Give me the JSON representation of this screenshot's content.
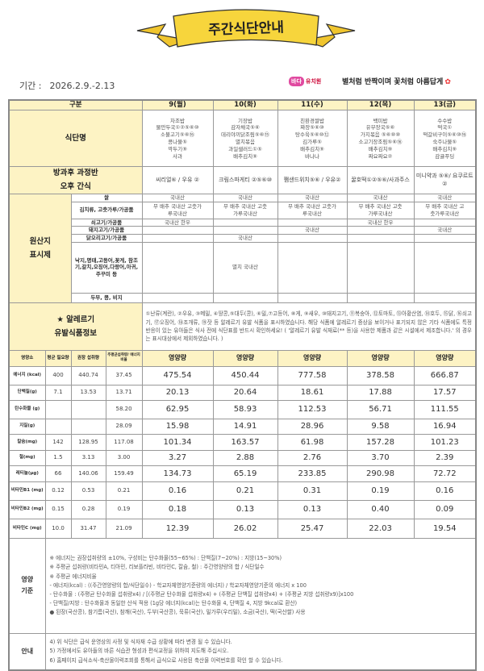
{
  "header": {
    "title": "주간식단안내",
    "period_label": "기간 :",
    "period_value": "2026.2.9.-2.13",
    "school_logo": "바다",
    "school_name": "유치원",
    "slogan": "별처럼 반짝이며 꽃처럼 아름답게",
    "flower_icon": "tulip-icon"
  },
  "table": {
    "category_header": "구분",
    "days": [
      "9(월)",
      "10(화)",
      "11(수)",
      "12(목)",
      "13(금)"
    ],
    "menu_label": "식단명",
    "menus": [
      [
        "차조밥",
        "물만두국①②⑤⑥⑩",
        "소불고기⑤⑥⑯",
        "콩나물⑤",
        "깍두기⑨",
        "사과"
      ],
      [
        "기장밥",
        "감자채국⑤⑥",
        "데리야끼닭조림⑤⑥⑮",
        "멸치볶음",
        "과일샐러드①⑤",
        "배추김치⑨"
      ],
      [
        "친환경쌀밥",
        "짜장⑤⑥⑩",
        "탕수육⑤⑥⑩⑫",
        "김가루⑤",
        "배추김치⑨",
        "바나나"
      ],
      [
        "백미밥",
        "유부장국⑤⑥",
        "가지볶음 ⑤⑥⑩⑩",
        "소고기장조림⑤⑥⑯",
        "배추김치⑨",
        "짜요짜요②"
      ],
      [
        "수수밥",
        "떡국①",
        "떡갈비구이⑤⑥⑩⑯",
        "숙주나물⑤",
        "배추김치⑨",
        "감귤푸딩"
      ]
    ],
    "snack_label_1": "방과후 과정반",
    "snack_label_2": "오후 간식",
    "snacks": [
      "씨리얼⑥ / 우유 ②",
      "크림스파게티 ②⑤⑥⑩",
      "쨈샌드위치⑤⑥ / 우유②",
      "꿀호떡①②⑤⑥/사과주스",
      "미니약과 ⑤⑥/ 요쿠르트②"
    ],
    "origin_label_1": "원산지",
    "origin_label_2": "표시제",
    "origin_rows": [
      {
        "item": "쌀",
        "values": [
          "국내산",
          "국내산",
          "국내산",
          "국내산",
          "국내산"
        ]
      },
      {
        "item": "김치류, 고춧가루/가공품",
        "values": [
          "무 배추 국내산 고춧가루국내산",
          "무 배추 국내산 고춧가루국내산",
          "무 배추 국내산 고춧가루국내산",
          "무 배추 국내산 고춧가루국내산",
          "무 배추 국내산 고춧가루국내산"
        ]
      },
      {
        "item": "쇠고기/가공품",
        "values": [
          "국내산 한우",
          "",
          "",
          "국내산 한우",
          ""
        ]
      },
      {
        "item": "돼지고기/가공품",
        "values": [
          "",
          "",
          "국내산",
          "",
          "국내산"
        ]
      },
      {
        "item": "닭오리고기/가공품",
        "values": [
          "",
          "국내산",
          "",
          "",
          ""
        ]
      },
      {
        "item": "낙지,명태,고등어,꽃게, 참조기,갈치,오징어,다랑어,아귀, 주꾸미 등",
        "values": [
          "",
          "멸치 국내산",
          "",
          "",
          ""
        ]
      },
      {
        "item": "두부, 콩, 비지",
        "values": [
          "",
          "",
          "",
          "",
          ""
        ]
      }
    ],
    "allergy_label_1": "★ 알레르기",
    "allergy_label_2": "유발식품정보",
    "allergy_text": "①난류(계란), ②우유, ③메밀, ④땅콩,⑤대두(콩), ⑥밀,⑦고등어, ⑧게, ⑨새우, ⑩돼지고기, ⑪복숭아, ⑫토마토, ⑬아황산염, ⑭호두, ⑮닭, ⑯쇠고기, ⑰오징어, ⑱조개류, ⑲잣 등 알레르기 유발 식품을 표시하였습니다. 해당 식품에 알레르기 증상을 보이거나 표기되지 않은 기타 식품에도 특정 반응이 있는 유아들은 식사 전에 식단표를 반드시 확인하세요! ( '알레르기 유발 식재료(** 등)을 사용한 제품과 같은 시설에서 제조합니다.' 의 경우는 표시대상에서 제외하였습니다. )",
    "nutrition_headers": [
      "영양소",
      "평균 필요량",
      "권장 섭취량",
      "주평균섭취량/ 에너지비율",
      "영양량"
    ],
    "nutrition_rows": [
      {
        "name": "에너지 (kcal)",
        "avg": "400",
        "rec": "440.74",
        "weekly": "37.45",
        "values": [
          "475.54",
          "450.44",
          "777.58",
          "378.58",
          "666.87"
        ]
      },
      {
        "name": "단백질(g)",
        "avg": "7.1",
        "rec": "13.53",
        "weekly": "13.71",
        "values": [
          "20.13",
          "20.64",
          "18.61",
          "17.88",
          "17.57"
        ]
      },
      {
        "name": "탄수화물 (g)",
        "avg": "",
        "rec": "",
        "weekly": "58.20",
        "values": [
          "62.95",
          "58.93",
          "112.53",
          "56.71",
          "111.55"
        ]
      },
      {
        "name": "지질(g)",
        "avg": "",
        "rec": "",
        "weekly": "28.09",
        "values": [
          "15.98",
          "14.91",
          "28.96",
          "9.58",
          "16.94"
        ]
      },
      {
        "name": "칼슘(mg)",
        "avg": "142",
        "rec": "128.95",
        "weekly": "117.08",
        "values": [
          "101.34",
          "163.57",
          "61.98",
          "157.28",
          "101.23"
        ]
      },
      {
        "name": "철(mg)",
        "avg": "1.5",
        "rec": "3.13",
        "weekly": "3.00",
        "values": [
          "3.27",
          "2.88",
          "2.76",
          "3.70",
          "2.39"
        ]
      },
      {
        "name": "레티놀(μg)",
        "avg": "66",
        "rec": "140.06",
        "weekly": "159.49",
        "values": [
          "134.73",
          "65.19",
          "233.85",
          "290.98",
          "72.72"
        ]
      },
      {
        "name": "비타민B1 (mg)",
        "avg": "0.12",
        "rec": "0.53",
        "weekly": "0.21",
        "values": [
          "0.16",
          "0.21",
          "0.31",
          "0.19",
          "0.16"
        ]
      },
      {
        "name": "비타민B2 (mg)",
        "avg": "0.15",
        "rec": "0.28",
        "weekly": "0.19",
        "values": [
          "0.18",
          "0.13",
          "0.13",
          "0.40",
          "0.09"
        ]
      },
      {
        "name": "비타민C (mg)",
        "avg": "10.0",
        "rec": "31.47",
        "weekly": "21.09",
        "values": [
          "12.39",
          "26.02",
          "25.47",
          "22.03",
          "19.54"
        ]
      }
    ],
    "guide_label_1": "영양",
    "guide_label_2": "기준",
    "guide_lines": [
      "※ 에너지는 권장섭취량의 ±10%, 구성비는 탄수화물(55~65%) : 단백질(7~20%) : 지방(15~30%)",
      "※ 주평균 섭취량(비타민A, 티아민, 리보플라빈, 비타민C, 칼슘, 철) : 주간영양량의 합 / 식단일수",
      "※ 주평균 에너지비율",
      "- 에너지(kcal) : ((주간영양량의 합/식단일수) - 학교자체영양기준량의 에너지) / 학교자체영양기준의 에너지 x 100",
      "- 탄수화물 : (주평균 탄수화물 섭취량x4) / [(주평균 탄수화물 섭취량x4) + (주평균 단백질 섭취량x4) + (주평균 지방 섭취량x9)]x100",
      "- 단백질/지방 : 탄수화물과 동일한 산식 적용 (1g당 에너지(kcal)는 탄수화물 4, 단백질 4, 지방 9kcal로 환산)",
      "● 된장(국산콩), 참기름(국산), 참깨(국산), 두부(국산콩), 묵류(국산), 밀가루(우리밀), 소금(국산), 떡(국산쌀) 사용"
    ],
    "notice_label": "안내",
    "notice_lines": [
      "4) 위 식단은 급식 운영상의 사정 및 식자재 수급 상황에 따라 변경 될 수 있습니다.",
      "5) 가정에서도 유아들의 바른 식습관 형성과 편식교정을 위하여 지도해 주십시오.",
      "6) 홈페이지 급식소식-축산물이력조회를 통해서 급식으로 사용된 축산물 이력번호를 확인 할 수 있습니다."
    ]
  },
  "colors": {
    "header_bg": "#fdf3c4",
    "banner": "#f7d53c",
    "border": "#999999"
  }
}
